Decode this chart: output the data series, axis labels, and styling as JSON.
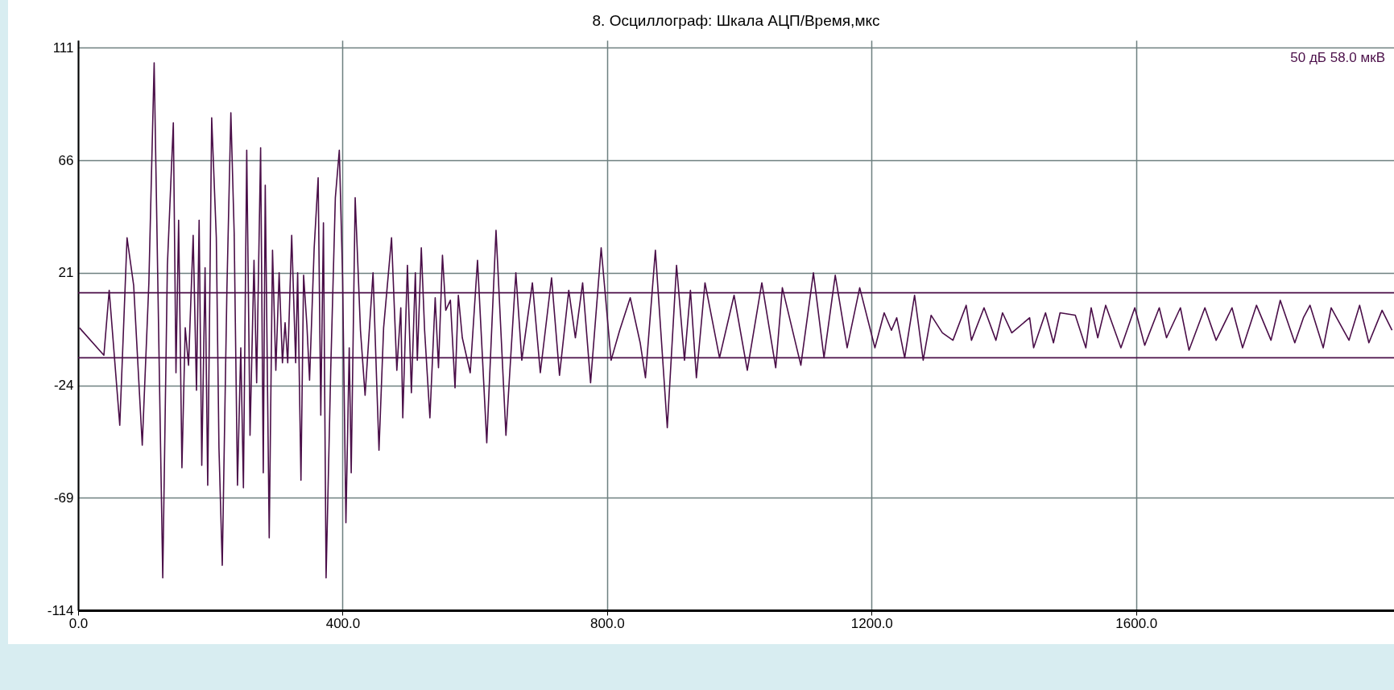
{
  "chart_data": {
    "type": "line",
    "title": "8. Осциллограф: Шкала АЦП/Время,мкс",
    "annotations": [
      "50 дБ 58.0 мкВ"
    ],
    "x": [
      2,
      39,
      47,
      63,
      74,
      84,
      97,
      107,
      115,
      128,
      135,
      144,
      148,
      152,
      157,
      162,
      167,
      174,
      179,
      183,
      187,
      192,
      196,
      202,
      209,
      213,
      218,
      225,
      231,
      236,
      241,
      246,
      250,
      255,
      260,
      266,
      270,
      276,
      280,
      283,
      289,
      294,
      299,
      304,
      309,
      313,
      317,
      323,
      329,
      332,
      337,
      341,
      346,
      350,
      357,
      363,
      367,
      371,
      375,
      382,
      389,
      395,
      400,
      405,
      410,
      413,
      419,
      427,
      434,
      446,
      455,
      462,
      474,
      482,
      488,
      491,
      498,
      504,
      510,
      513,
      519,
      524,
      532,
      540,
      545,
      551,
      556,
      563,
      570,
      575,
      581,
      593,
      604,
      618,
      632,
      647,
      662,
      671,
      687,
      699,
      716,
      728,
      742,
      752,
      763,
      775,
      791,
      806,
      819,
      835,
      850,
      858,
      873,
      891,
      905,
      917,
      926,
      935,
      948,
      970,
      992,
      1012,
      1034,
      1055,
      1065,
      1093,
      1112,
      1128,
      1145,
      1163,
      1182,
      1205,
      1219,
      1230,
      1238,
      1250,
      1265,
      1278,
      1290,
      1307,
      1323,
      1343,
      1351,
      1370,
      1388,
      1398,
      1412,
      1439,
      1445,
      1463,
      1475,
      1485,
      1508,
      1524,
      1532,
      1542,
      1554,
      1577,
      1598,
      1613,
      1635,
      1646,
      1667,
      1680,
      1704,
      1721,
      1745,
      1761,
      1782,
      1804,
      1818,
      1840,
      1853,
      1863,
      1883,
      1895,
      1922,
      1938,
      1952,
      1972,
      1987
    ],
    "series": [
      {
        "color": "#4a0e48",
        "values": [
          -1,
          -12,
          14,
          -40,
          35,
          16,
          -48,
          17,
          105,
          -101,
          24,
          81,
          -19,
          42,
          -57,
          -1,
          -16,
          36,
          -26,
          42,
          -56,
          23,
          -64,
          83,
          35,
          -49,
          -96,
          14,
          85,
          37,
          -64,
          -9,
          -65,
          70,
          -44,
          26,
          -23,
          71,
          -59,
          56,
          -85,
          30,
          -18,
          21,
          -15,
          1,
          -15,
          36,
          -15,
          21,
          -62,
          20,
          0,
          -22,
          31,
          59,
          -36,
          41,
          -101,
          -18,
          51,
          70,
          19,
          -79,
          -9,
          -59,
          51,
          -2,
          -28,
          21,
          -50,
          -1,
          35,
          -18,
          7,
          -37,
          24,
          -27,
          21,
          -14,
          31,
          -2,
          -37,
          11,
          -17,
          28,
          6,
          10,
          -25,
          12,
          -5,
          -19,
          26,
          -47,
          38,
          -44,
          21,
          -14,
          17,
          -19,
          19,
          -20,
          14,
          -5,
          17,
          -23,
          31,
          -14,
          -2,
          11,
          -7,
          -21,
          30,
          -41,
          24,
          -14,
          14,
          -21,
          17,
          -13,
          12,
          -18,
          17,
          -17,
          15,
          -16,
          21,
          -13,
          20,
          -9,
          15,
          -9,
          5,
          -2,
          3,
          -13,
          12,
          -14,
          4,
          -3,
          -6,
          8,
          -6,
          7,
          -6,
          5,
          -3,
          3,
          -9,
          5,
          -7,
          5,
          4,
          -9,
          7,
          -5,
          8,
          -9,
          7,
          -8,
          7,
          -5,
          7,
          -10,
          7,
          -6,
          7,
          -9,
          8,
          -6,
          10,
          -7,
          3,
          8,
          -9,
          7,
          -6,
          8,
          -7,
          6,
          -2
        ]
      }
    ],
    "xlim": [
      0,
      1990
    ],
    "xticks": [
      {
        "value": 0,
        "label": "0.0"
      },
      {
        "value": 400,
        "label": "400.0"
      },
      {
        "value": 800,
        "label": "800.0"
      },
      {
        "value": 1200,
        "label": "1200.0"
      },
      {
        "value": 1600,
        "label": "1600.0"
      }
    ],
    "ylim": [
      -114,
      114
    ],
    "yticks": [
      -114,
      -69,
      -24,
      21,
      66,
      111
    ],
    "grid": true,
    "ref_lines": [
      {
        "axis": "y",
        "value": 13,
        "color": "#4a0e48"
      },
      {
        "axis": "y",
        "value": -13,
        "color": "#4a0e48"
      }
    ]
  }
}
